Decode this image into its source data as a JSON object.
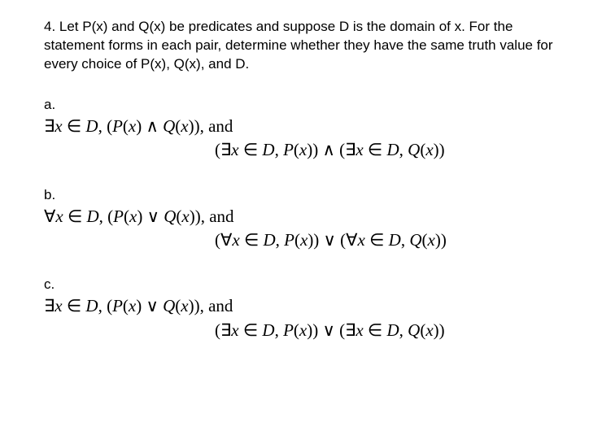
{
  "intro": "4. Let P(x) and Q(x) be predicates and suppose D is the domain of x. For the statement forms in each pair, determine whether they have the same truth value for every choice of P(x), Q(x), and D.",
  "parts": {
    "a": {
      "label": "a.",
      "line1_prefix": "∃",
      "line1_x": "x",
      "line1_in": " ∈ ",
      "line1_D": "D",
      "line1_mid": ", (",
      "line1_P": "P",
      "line1_paren1": "(",
      "line1_x2": "x",
      "line1_paren2": ") ∧ ",
      "line1_Q": "Q",
      "line1_paren3": "(",
      "line1_x3": "x",
      "line1_paren4": ")), and",
      "line2": "(∃x ∈ D, P(x)) ∧ (∃x ∈ D, Q(x))",
      "line2_html": "(∃<span class=\"it\">x</span> ∈ <span class=\"it\">D</span>, <span class=\"it\">P</span>(<span class=\"it\">x</span>)) ∧ (∃<span class=\"it\">x</span> ∈ <span class=\"it\">D</span>, <span class=\"it\">Q</span>(<span class=\"it\">x</span>))"
    },
    "b": {
      "label": "b.",
      "line1_prefix": "∀",
      "line1_x": "x",
      "line1_in": " ∈ ",
      "line1_D": "D",
      "line1_mid": ", (",
      "line1_P": "P",
      "line1_paren1": "(",
      "line1_x2": "x",
      "line1_paren2": ") ∨ ",
      "line1_Q": "Q",
      "line1_paren3": "(",
      "line1_x3": "x",
      "line1_paren4": ")), and",
      "line2_html": "(∀<span class=\"it\">x</span> ∈ <span class=\"it\">D</span>, <span class=\"it\">P</span>(<span class=\"it\">x</span>)) ∨ (∀<span class=\"it\">x</span> ∈ <span class=\"it\">D</span>, <span class=\"it\">Q</span>(<span class=\"it\">x</span>))"
    },
    "c": {
      "label": "c.",
      "line1_prefix": "∃",
      "line1_x": "x",
      "line1_in": " ∈ ",
      "line1_D": "D",
      "line1_mid": ", (",
      "line1_P": "P",
      "line1_paren1": "(",
      "line1_x2": "x",
      "line1_paren2": ") ∨ ",
      "line1_Q": "Q",
      "line1_paren3": "(",
      "line1_x3": "x",
      "line1_paren4": ")), and",
      "line2_html": "(∃<span class=\"it\">x</span> ∈ <span class=\"it\">D</span>, <span class=\"it\">P</span>(<span class=\"it\">x</span>)) ∨ (∃<span class=\"it\">x</span> ∈ <span class=\"it\">D</span>, <span class=\"it\">Q</span>(<span class=\"it\">x</span>))"
    }
  },
  "style": {
    "background_color": "#ffffff",
    "text_color": "#000000",
    "intro_fontsize": 17,
    "math_fontsize": 21,
    "intro_font": "Arial",
    "math_font": "Times New Roman"
  }
}
